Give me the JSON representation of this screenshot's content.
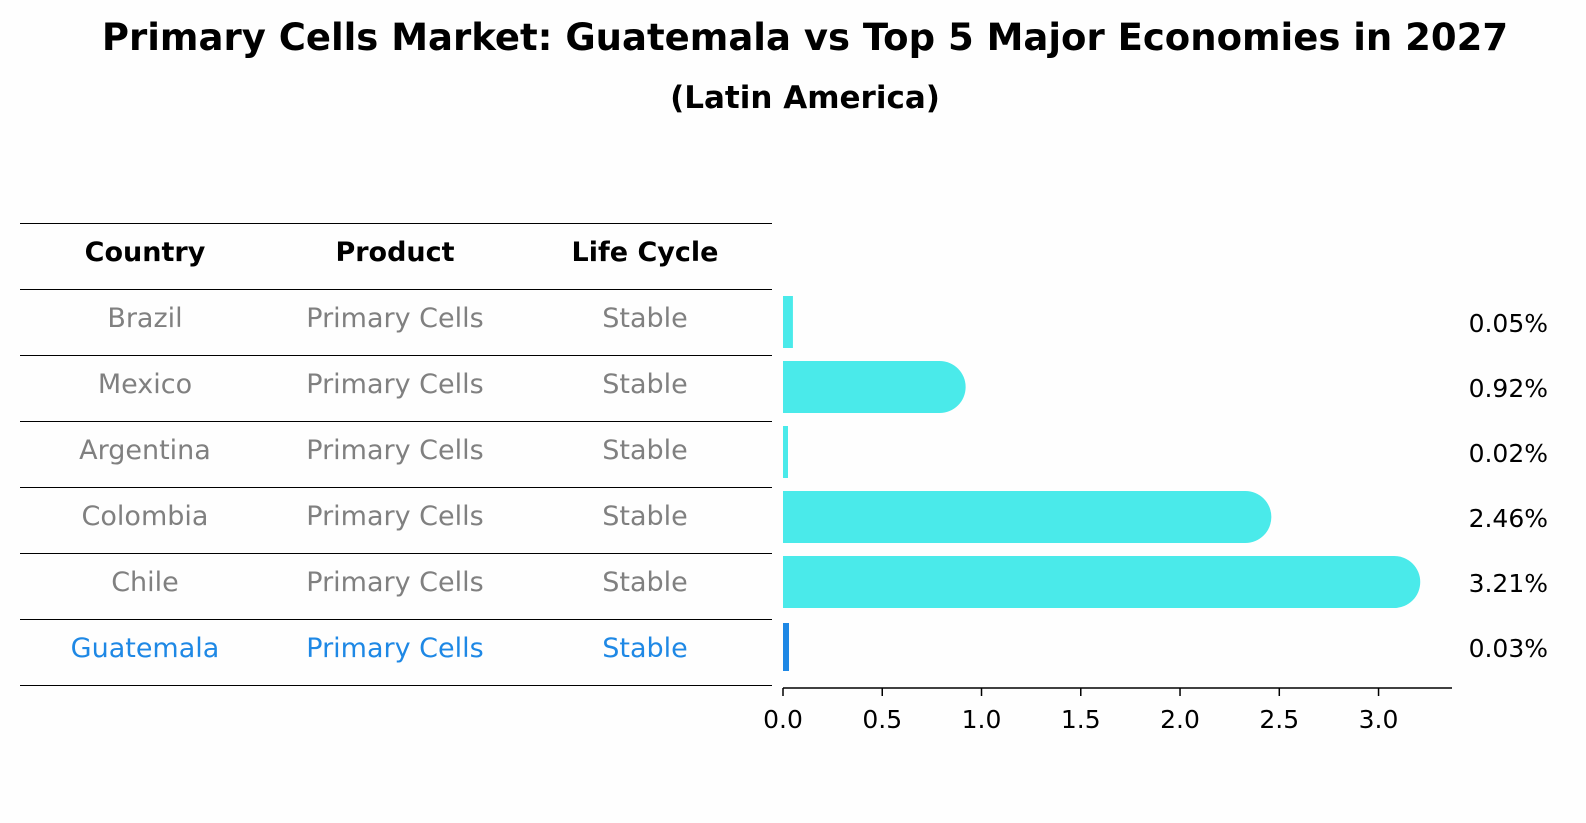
{
  "chart_data": {
    "type": "bar",
    "orientation": "horizontal",
    "title": "Primary Cells Market: Guatemala vs Top 5 Major Economies in 2027",
    "subtitle": "(Latin America)",
    "table": {
      "columns": [
        "Country",
        "Product",
        "Life Cycle"
      ],
      "rows": [
        [
          "Brazil",
          "Primary Cells",
          "Stable"
        ],
        [
          "Mexico",
          "Primary Cells",
          "Stable"
        ],
        [
          "Argentina",
          "Primary Cells",
          "Stable"
        ],
        [
          "Colombia",
          "Primary Cells",
          "Stable"
        ],
        [
          "Chile",
          "Primary Cells",
          "Stable"
        ],
        [
          "Guatemala",
          "Primary Cells",
          "Stable"
        ]
      ],
      "highlight_row": 5
    },
    "categories": [
      "Brazil",
      "Mexico",
      "Argentina",
      "Colombia",
      "Chile",
      "Guatemala"
    ],
    "values": [
      0.05,
      0.92,
      0.02,
      2.46,
      3.21,
      0.03
    ],
    "value_labels": [
      "0.05%",
      "0.92%",
      "0.02%",
      "2.46%",
      "3.21%",
      "0.03%"
    ],
    "xlim": [
      0,
      3.37
    ],
    "xticks": [
      0.0,
      0.5,
      1.0,
      1.5,
      2.0,
      2.5,
      3.0
    ],
    "xtick_labels": [
      "0.0",
      "0.5",
      "1.0",
      "1.5",
      "2.0",
      "2.5",
      "3.0"
    ],
    "colors": {
      "bar": "#4aeaea",
      "highlight_bar": "#1e88e5",
      "highlight_text": "#1e88e5",
      "table_text": "#808080"
    }
  }
}
